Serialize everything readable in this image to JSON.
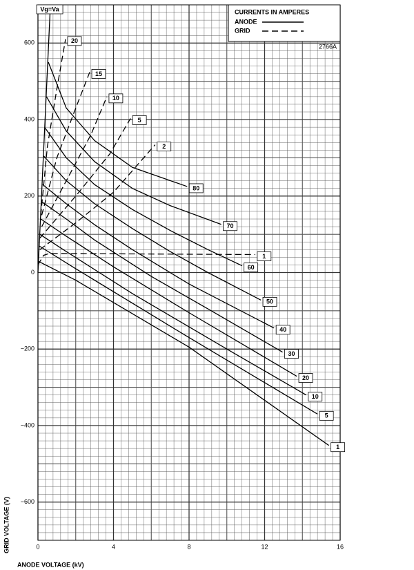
{
  "chart_data": {
    "type": "line",
    "xlabel": "ANODE VOLTAGE (kV)",
    "ylabel": "GRID VOLTAGE (V)",
    "code": "2766A",
    "legend": {
      "title": "CURRENTS IN AMPERES",
      "entries": [
        {
          "label": "ANODE",
          "dash": "solid"
        },
        {
          "label": "GRID",
          "dash": "dashed"
        }
      ]
    },
    "xlim": [
      0,
      16
    ],
    "xticks": [
      0,
      4,
      8,
      12,
      16
    ],
    "ylim": [
      -700,
      700
    ],
    "yticks": [
      {
        "value": -600,
        "label": "−600"
      },
      {
        "value": -400,
        "label": "−400"
      },
      {
        "value": -200,
        "label": "−200"
      },
      0,
      200,
      400,
      600
    ],
    "grid": true,
    "color": "#000000",
    "series": [
      {
        "name": "Vg=Va",
        "dash": "solid",
        "x": [
          0,
          0.66
        ],
        "values": [
          0,
          700
        ]
      },
      {
        "name": "80",
        "dash": "solid",
        "x": [
          0.55,
          1.5,
          3,
          5,
          7.9
        ],
        "values": [
          550,
          430,
          345,
          275,
          225
        ]
      },
      {
        "name": "70",
        "dash": "solid",
        "x": [
          0.45,
          1.5,
          3,
          5,
          7,
          9.7
        ],
        "values": [
          460,
          370,
          290,
          220,
          175,
          126
        ]
      },
      {
        "name": "60",
        "dash": "solid",
        "x": [
          0.35,
          1.5,
          3,
          5,
          7,
          9,
          10.8
        ],
        "values": [
          380,
          300,
          230,
          165,
          110,
          60,
          18
        ]
      },
      {
        "name": "50",
        "dash": "solid",
        "x": [
          0.3,
          1.5,
          3,
          5,
          7,
          9,
          11.8
        ],
        "values": [
          305,
          240,
          180,
          115,
          55,
          0,
          -72
        ]
      },
      {
        "name": "40",
        "dash": "solid",
        "x": [
          0.25,
          1.5,
          3,
          5,
          8,
          12.5
        ],
        "values": [
          230,
          180,
          125,
          60,
          -30,
          -145
        ]
      },
      {
        "name": "30",
        "dash": "solid",
        "x": [
          0.2,
          1.5,
          3,
          6,
          9,
          12.95
        ],
        "values": [
          185,
          140,
          85,
          -10,
          -95,
          -208
        ]
      },
      {
        "name": "20",
        "dash": "solid",
        "x": [
          0.15,
          1.5,
          4,
          8,
          13.7
        ],
        "values": [
          140,
          95,
          15,
          -105,
          -271
        ]
      },
      {
        "name": "10",
        "dash": "solid",
        "x": [
          0.1,
          1.5,
          5,
          10,
          14.2
        ],
        "values": [
          100,
          55,
          -55,
          -200,
          -320
        ]
      },
      {
        "name": "5",
        "dash": "solid",
        "x": [
          0.05,
          2,
          8,
          14.8
        ],
        "values": [
          70,
          10,
          -170,
          -370
        ]
      },
      {
        "name": "1",
        "dash": "solid",
        "x": [
          0,
          2,
          8,
          15.4
        ],
        "values": [
          30,
          -20,
          -195,
          -452
        ]
      },
      {
        "name": "20",
        "dash": "dashed",
        "x": [
          0.15,
          0.5,
          1,
          1.46
        ],
        "values": [
          150,
          330,
          480,
          610
        ]
      },
      {
        "name": "15",
        "dash": "dashed",
        "x": [
          0.2,
          1,
          2,
          2.74
        ],
        "values": [
          150,
          300,
          430,
          524
        ]
      },
      {
        "name": "10",
        "dash": "dashed",
        "x": [
          0.2,
          1.5,
          2.8,
          3.65
        ],
        "values": [
          120,
          240,
          360,
          460
        ]
      },
      {
        "name": "5",
        "dash": "dashed",
        "x": [
          0.1,
          2,
          3.8,
          4.9
        ],
        "values": [
          90,
          200,
          310,
          403
        ]
      },
      {
        "name": "2",
        "dash": "dashed",
        "x": [
          0.1,
          2,
          4,
          6.2
        ],
        "values": [
          60,
          130,
          210,
          334
        ]
      },
      {
        "name": "1",
        "dash": "dashed",
        "x": [
          0,
          0.3,
          0.6,
          11.5
        ],
        "values": [
          20,
          45,
          50,
          47
        ]
      }
    ]
  }
}
